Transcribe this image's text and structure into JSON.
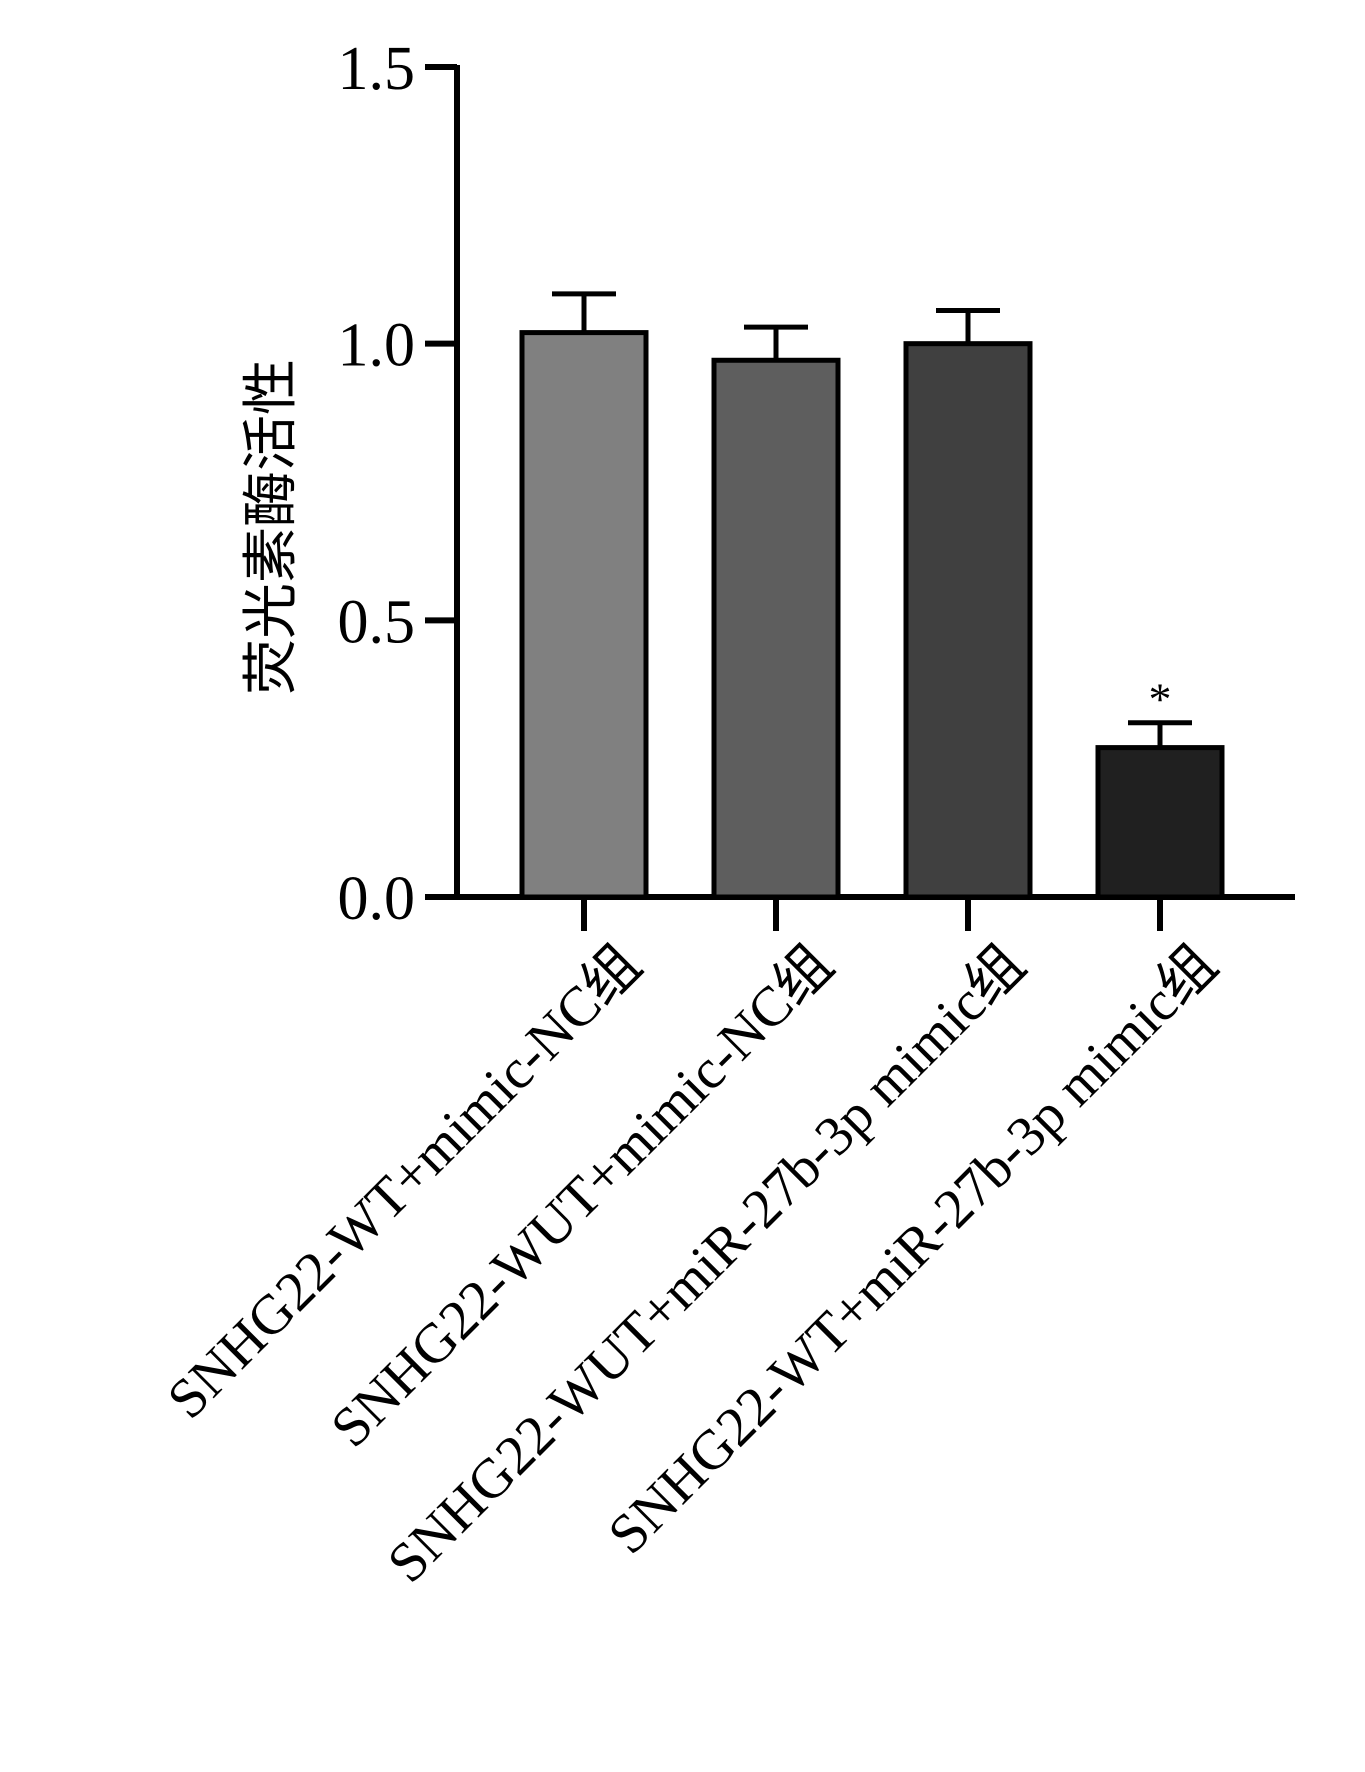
{
  "chart_data": {
    "type": "bar",
    "ylabel": "荧光素酶活性",
    "xlabel": "",
    "ylim": [
      0,
      1.5
    ],
    "yticks": [
      0.0,
      0.5,
      1.0,
      1.5
    ],
    "ytick_labels": [
      "0.0",
      "0.5",
      "1.0",
      "1.5"
    ],
    "grid": false,
    "legend": "none",
    "categories": [
      "SNHG22-WT+mimic-NC组",
      "SNHG22-WUT+mimic-NC组",
      "SNHG22-WUT+miR-27b-3p mimic组",
      "SNHG22-WT+miR-27b-3p mimic组"
    ],
    "values": [
      1.02,
      0.97,
      1.0,
      0.27
    ],
    "errors": [
      0.07,
      0.06,
      0.06,
      0.045
    ],
    "bar_colors": [
      "#808080",
      "#5e5e5e",
      "#404040",
      "#202020"
    ],
    "annotations": [
      "",
      "",
      "",
      "*"
    ]
  }
}
